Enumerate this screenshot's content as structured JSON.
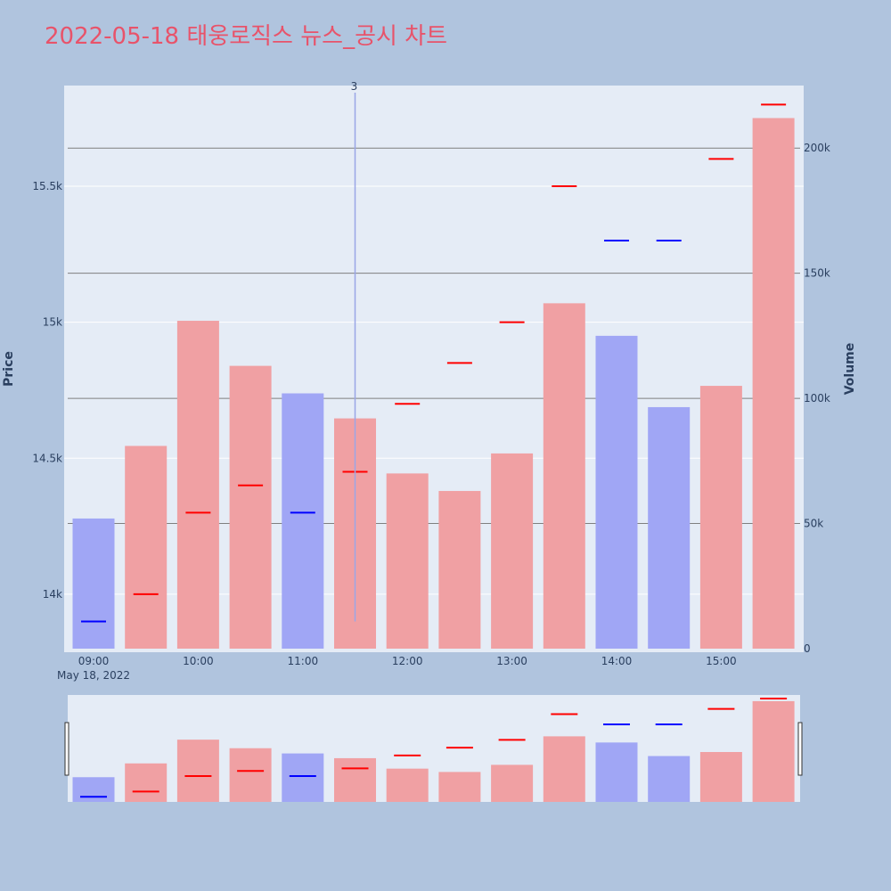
{
  "title": "2022-05-18 태웅로직스 뉴스_공시 차트",
  "colors": {
    "page_bg": "#b0c4de",
    "plot_bg": "#e5ecf6",
    "title": "#e8536a",
    "up_bar": "#f0a0a3",
    "down_bar": "#a0a6f5",
    "up_tick": "#ff0000",
    "down_tick": "#0000ff",
    "grid_volume": "#7f7f7f",
    "annotation_line": "#9aa6e6"
  },
  "chart_data": {
    "type": "bar",
    "x_tick_labels": [
      "09:00",
      "10:00",
      "11:00",
      "12:00",
      "13:00",
      "14:00",
      "15:00"
    ],
    "x_date_label": "May 18, 2022",
    "y_price_label": "Price",
    "y_volume_label": "Volume",
    "price_ticks": [
      "14k",
      "14.5k",
      "15k",
      "15.5k"
    ],
    "volume_ticks": [
      "0",
      "50k",
      "100k",
      "150k",
      "200k"
    ],
    "price_range": [
      13800,
      15870
    ],
    "volume_range": [
      0,
      225000
    ],
    "annotation": {
      "label": "3",
      "time": "11:30",
      "price_low": 13900
    },
    "grid": true,
    "bars": [
      {
        "time": "09:00",
        "volume": 52000,
        "price": 13900,
        "direction": "down"
      },
      {
        "time": "09:30",
        "volume": 81000,
        "price": 14000,
        "direction": "up"
      },
      {
        "time": "10:00",
        "volume": 131000,
        "price": 14300,
        "direction": "up"
      },
      {
        "time": "10:30",
        "volume": 113000,
        "price": 14400,
        "direction": "up"
      },
      {
        "time": "11:00",
        "volume": 102000,
        "price": 14300,
        "direction": "down"
      },
      {
        "time": "11:30",
        "volume": 92000,
        "price": 14450,
        "direction": "up"
      },
      {
        "time": "12:00",
        "volume": 70000,
        "price": 14700,
        "direction": "up"
      },
      {
        "time": "12:30",
        "volume": 63000,
        "price": 14850,
        "direction": "up"
      },
      {
        "time": "13:00",
        "volume": 78000,
        "price": 15000,
        "direction": "up"
      },
      {
        "time": "13:30",
        "volume": 138000,
        "price": 15500,
        "direction": "up"
      },
      {
        "time": "14:00",
        "volume": 125000,
        "price": 15300,
        "direction": "down"
      },
      {
        "time": "14:30",
        "volume": 96500,
        "price": 15300,
        "direction": "down"
      },
      {
        "time": "15:00",
        "volume": 105000,
        "price": 15600,
        "direction": "up"
      },
      {
        "time": "15:30",
        "volume": 212000,
        "price": 15800,
        "direction": "up"
      }
    ]
  }
}
